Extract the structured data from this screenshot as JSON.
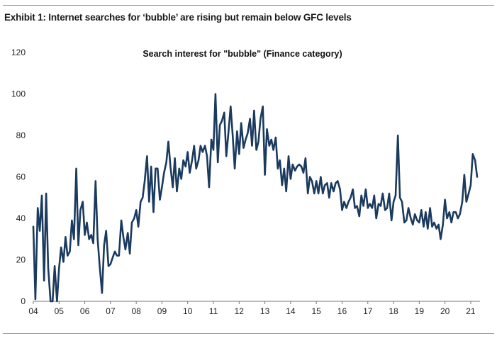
{
  "exhibit": {
    "title": "Exhibit 1: Internet searches for ‘bubble’ are rising but remain below GFC levels"
  },
  "chart_data": {
    "type": "line",
    "title": "Search interest for \"bubble\" (Finance category)",
    "xlabel": "",
    "ylabel": "",
    "ylim": [
      0,
      120
    ],
    "yticks": [
      0,
      20,
      40,
      60,
      80,
      100,
      120
    ],
    "xlim": [
      2004.0,
      2021.25
    ],
    "xticks": [
      {
        "value": 2004,
        "label": "04"
      },
      {
        "value": 2005,
        "label": "05"
      },
      {
        "value": 2006,
        "label": "06"
      },
      {
        "value": 2007,
        "label": "07"
      },
      {
        "value": 2008,
        "label": "08"
      },
      {
        "value": 2009,
        "label": "09"
      },
      {
        "value": 2010,
        "label": "10"
      },
      {
        "value": 2011,
        "label": "11"
      },
      {
        "value": 2012,
        "label": "12"
      },
      {
        "value": 2013,
        "label": "13"
      },
      {
        "value": 2014,
        "label": "14"
      },
      {
        "value": 2015,
        "label": "15"
      },
      {
        "value": 2016,
        "label": "16"
      },
      {
        "value": 2017,
        "label": "17"
      },
      {
        "value": 2018,
        "label": "18"
      },
      {
        "value": 2019,
        "label": "19"
      },
      {
        "value": 2020,
        "label": "20"
      },
      {
        "value": 2021,
        "label": "21"
      }
    ],
    "grid": false,
    "legend": "none",
    "line_color": "#1a3a5e",
    "series": [
      {
        "values": [
          [
            2004.0,
            36
          ],
          [
            2004.08,
            1
          ],
          [
            2004.17,
            45
          ],
          [
            2004.25,
            34
          ],
          [
            2004.33,
            51
          ],
          [
            2004.42,
            10
          ],
          [
            2004.5,
            52
          ],
          [
            2004.58,
            16
          ],
          [
            2004.67,
            0
          ],
          [
            2004.75,
            0
          ],
          [
            2004.83,
            17
          ],
          [
            2004.92,
            0
          ],
          [
            2005.0,
            16
          ],
          [
            2005.08,
            26
          ],
          [
            2005.17,
            19
          ],
          [
            2005.25,
            31
          ],
          [
            2005.33,
            22
          ],
          [
            2005.42,
            24
          ],
          [
            2005.5,
            39
          ],
          [
            2005.58,
            30
          ],
          [
            2005.67,
            64
          ],
          [
            2005.75,
            27
          ],
          [
            2005.83,
            44
          ],
          [
            2005.92,
            48
          ],
          [
            2006.0,
            32
          ],
          [
            2006.08,
            38
          ],
          [
            2006.17,
            30
          ],
          [
            2006.25,
            32
          ],
          [
            2006.33,
            28
          ],
          [
            2006.42,
            58
          ],
          [
            2006.5,
            30
          ],
          [
            2006.58,
            17
          ],
          [
            2006.67,
            4
          ],
          [
            2006.75,
            27
          ],
          [
            2006.83,
            34
          ],
          [
            2006.92,
            17
          ],
          [
            2007.0,
            18
          ],
          [
            2007.08,
            21
          ],
          [
            2007.17,
            24
          ],
          [
            2007.25,
            22
          ],
          [
            2007.33,
            22
          ],
          [
            2007.42,
            39
          ],
          [
            2007.5,
            31
          ],
          [
            2007.58,
            25
          ],
          [
            2007.67,
            33
          ],
          [
            2007.75,
            23
          ],
          [
            2007.83,
            38
          ],
          [
            2007.92,
            40
          ],
          [
            2008.0,
            44
          ],
          [
            2008.08,
            36
          ],
          [
            2008.17,
            48
          ],
          [
            2008.25,
            50
          ],
          [
            2008.33,
            58
          ],
          [
            2008.42,
            70
          ],
          [
            2008.5,
            48
          ],
          [
            2008.58,
            65
          ],
          [
            2008.67,
            43
          ],
          [
            2008.75,
            64
          ],
          [
            2008.83,
            64
          ],
          [
            2008.92,
            49
          ],
          [
            2009.0,
            55
          ],
          [
            2009.08,
            62
          ],
          [
            2009.17,
            67
          ],
          [
            2009.25,
            77
          ],
          [
            2009.33,
            65
          ],
          [
            2009.42,
            55
          ],
          [
            2009.5,
            69
          ],
          [
            2009.58,
            53
          ],
          [
            2009.67,
            64
          ],
          [
            2009.75,
            59
          ],
          [
            2009.83,
            68
          ],
          [
            2009.92,
            65
          ],
          [
            2010.0,
            72
          ],
          [
            2010.08,
            62
          ],
          [
            2010.17,
            68
          ],
          [
            2010.25,
            75
          ],
          [
            2010.33,
            64
          ],
          [
            2010.42,
            68
          ],
          [
            2010.5,
            75
          ],
          [
            2010.58,
            72
          ],
          [
            2010.67,
            75
          ],
          [
            2010.75,
            70
          ],
          [
            2010.83,
            55
          ],
          [
            2010.92,
            78
          ],
          [
            2011.0,
            73
          ],
          [
            2011.08,
            100
          ],
          [
            2011.17,
            67
          ],
          [
            2011.25,
            85
          ],
          [
            2011.33,
            87
          ],
          [
            2011.42,
            91
          ],
          [
            2011.5,
            70
          ],
          [
            2011.58,
            81
          ],
          [
            2011.67,
            94
          ],
          [
            2011.75,
            80
          ],
          [
            2011.83,
            64
          ],
          [
            2011.92,
            82
          ],
          [
            2012.0,
            71
          ],
          [
            2012.08,
            86
          ],
          [
            2012.17,
            74
          ],
          [
            2012.25,
            78
          ],
          [
            2012.33,
            81
          ],
          [
            2012.42,
            88
          ],
          [
            2012.5,
            75
          ],
          [
            2012.58,
            92
          ],
          [
            2012.67,
            73
          ],
          [
            2012.75,
            77
          ],
          [
            2012.83,
            88
          ],
          [
            2012.92,
            94
          ],
          [
            2013.0,
            61
          ],
          [
            2013.08,
            83
          ],
          [
            2013.17,
            75
          ],
          [
            2013.25,
            78
          ],
          [
            2013.33,
            73
          ],
          [
            2013.42,
            79
          ],
          [
            2013.5,
            64
          ],
          [
            2013.58,
            68
          ],
          [
            2013.67,
            56
          ],
          [
            2013.75,
            64
          ],
          [
            2013.83,
            53
          ],
          [
            2013.92,
            70
          ],
          [
            2014.0,
            59
          ],
          [
            2014.08,
            66
          ],
          [
            2014.17,
            63
          ],
          [
            2014.25,
            65
          ],
          [
            2014.33,
            66
          ],
          [
            2014.42,
            65
          ],
          [
            2014.5,
            62
          ],
          [
            2014.58,
            69
          ],
          [
            2014.67,
            52
          ],
          [
            2014.75,
            60
          ],
          [
            2014.83,
            58
          ],
          [
            2014.92,
            52
          ],
          [
            2015.0,
            58
          ],
          [
            2015.08,
            52
          ],
          [
            2015.17,
            60
          ],
          [
            2015.25,
            52
          ],
          [
            2015.33,
            56
          ],
          [
            2015.42,
            57
          ],
          [
            2015.5,
            50
          ],
          [
            2015.58,
            57
          ],
          [
            2015.67,
            53
          ],
          [
            2015.75,
            57
          ],
          [
            2015.83,
            58
          ],
          [
            2015.92,
            54
          ],
          [
            2016.0,
            44
          ],
          [
            2016.08,
            48
          ],
          [
            2016.17,
            45
          ],
          [
            2016.25,
            48
          ],
          [
            2016.33,
            50
          ],
          [
            2016.42,
            54
          ],
          [
            2016.5,
            45
          ],
          [
            2016.58,
            46
          ],
          [
            2016.67,
            41
          ],
          [
            2016.75,
            51
          ],
          [
            2016.83,
            46
          ],
          [
            2016.92,
            54
          ],
          [
            2017.0,
            45
          ],
          [
            2017.08,
            47
          ],
          [
            2017.17,
            45
          ],
          [
            2017.25,
            51
          ],
          [
            2017.33,
            40
          ],
          [
            2017.42,
            47
          ],
          [
            2017.5,
            46
          ],
          [
            2017.58,
            52
          ],
          [
            2017.67,
            44
          ],
          [
            2017.75,
            45
          ],
          [
            2017.83,
            52
          ],
          [
            2017.92,
            39
          ],
          [
            2018.0,
            48
          ],
          [
            2018.08,
            51
          ],
          [
            2018.17,
            80
          ],
          [
            2018.25,
            50
          ],
          [
            2018.33,
            48
          ],
          [
            2018.42,
            38
          ],
          [
            2018.5,
            39
          ],
          [
            2018.58,
            45
          ],
          [
            2018.67,
            40
          ],
          [
            2018.75,
            37
          ],
          [
            2018.83,
            42
          ],
          [
            2018.92,
            39
          ],
          [
            2019.0,
            38
          ],
          [
            2019.08,
            44
          ],
          [
            2019.17,
            36
          ],
          [
            2019.25,
            43
          ],
          [
            2019.33,
            35
          ],
          [
            2019.42,
            45
          ],
          [
            2019.5,
            36
          ],
          [
            2019.58,
            38
          ],
          [
            2019.67,
            35
          ],
          [
            2019.75,
            37
          ],
          [
            2019.83,
            30
          ],
          [
            2019.92,
            37
          ],
          [
            2020.0,
            49
          ],
          [
            2020.08,
            40
          ],
          [
            2020.17,
            43
          ],
          [
            2020.25,
            38
          ],
          [
            2020.33,
            43
          ],
          [
            2020.42,
            43
          ],
          [
            2020.5,
            40
          ],
          [
            2020.58,
            42
          ],
          [
            2020.67,
            48
          ],
          [
            2020.75,
            61
          ],
          [
            2020.83,
            48
          ],
          [
            2020.92,
            52
          ],
          [
            2021.0,
            56
          ],
          [
            2021.08,
            71
          ],
          [
            2021.17,
            68
          ],
          [
            2021.25,
            60
          ]
        ]
      }
    ]
  }
}
